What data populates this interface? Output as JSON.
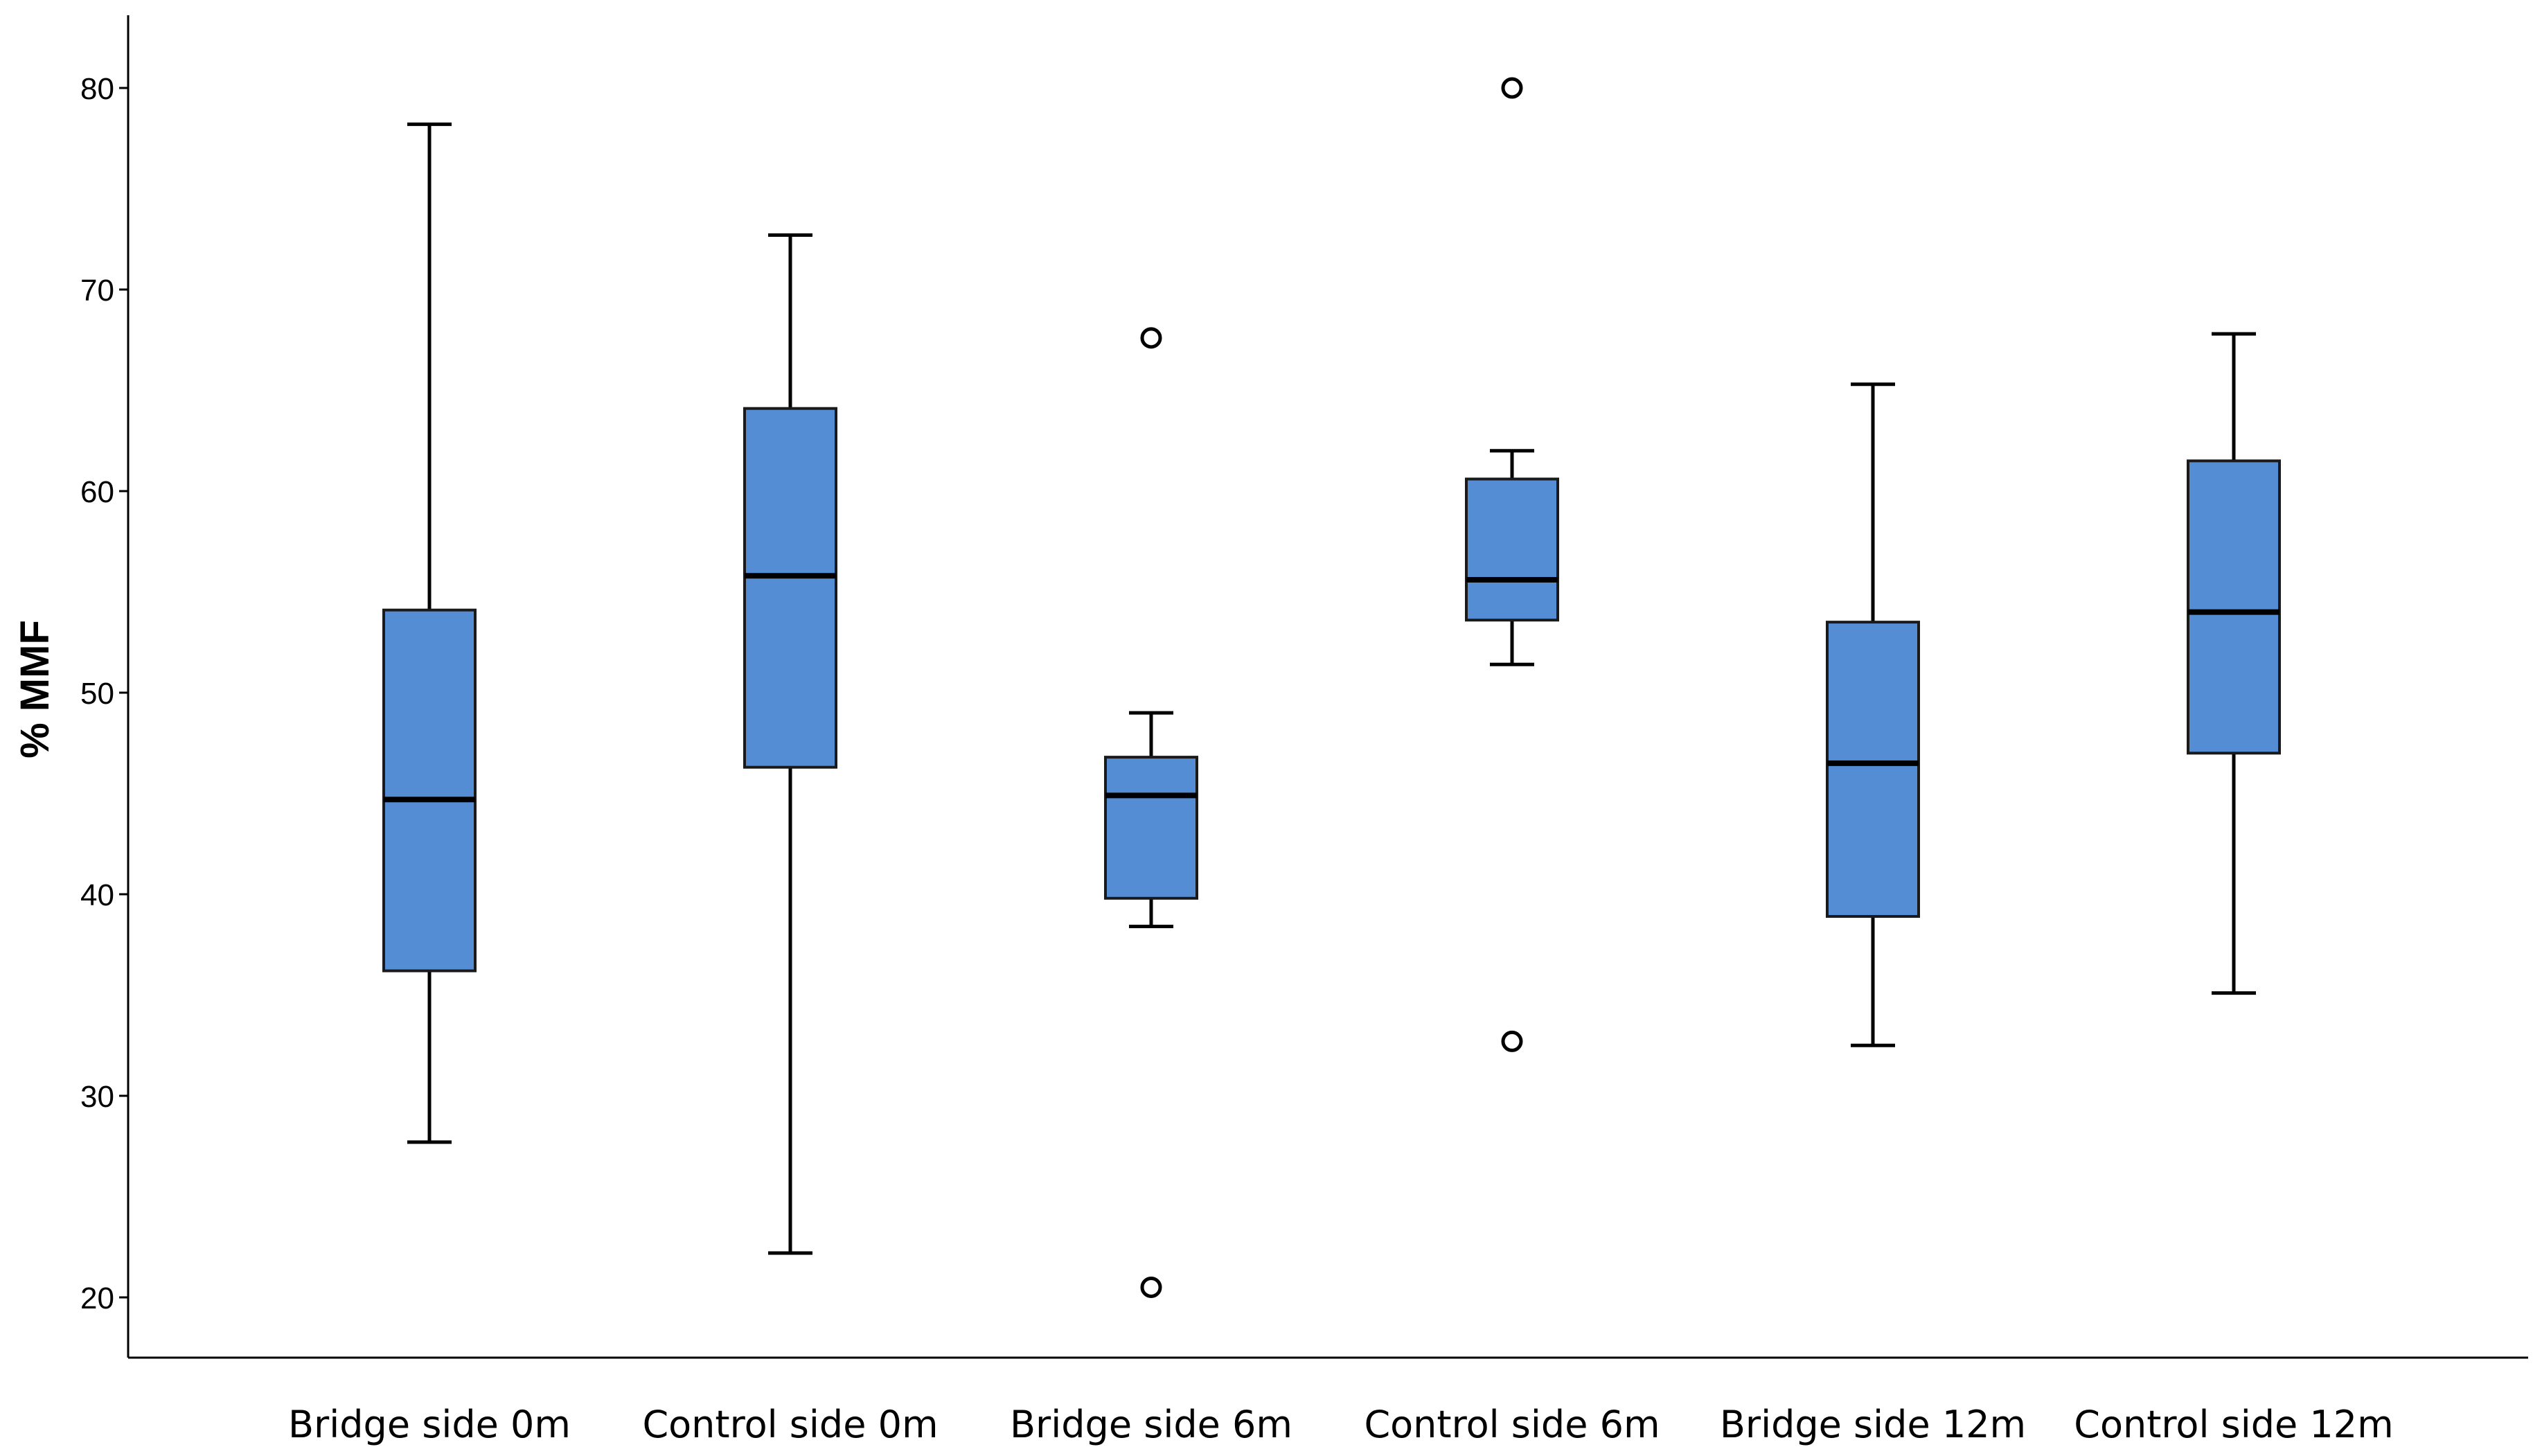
{
  "chart_data": {
    "type": "boxplot",
    "title": "",
    "xlabel": "",
    "ylabel": "% MMF",
    "ylim": [
      18,
      84
    ],
    "yticks": [
      20,
      30,
      40,
      50,
      60,
      70,
      80
    ],
    "grid": false,
    "box_color": "#548DD4",
    "categories": [
      "Bridge side 0m",
      "Control side 0m",
      "Bridge side 6m",
      "Control side 6m",
      "Bridge side 12m",
      "Control side 12m"
    ],
    "series": [
      {
        "name": "Bridge side 0m",
        "whisker_low": 27.7,
        "q1": 36.2,
        "median": 44.7,
        "q3": 54.1,
        "whisker_high": 78.2,
        "outliers": []
      },
      {
        "name": "Control side 0m",
        "whisker_low": 22.2,
        "q1": 46.3,
        "median": 55.8,
        "q3": 64.1,
        "whisker_high": 72.7,
        "outliers": []
      },
      {
        "name": "Bridge side 6m",
        "whisker_low": 38.4,
        "q1": 39.8,
        "median": 44.9,
        "q3": 46.8,
        "whisker_high": 49.0,
        "outliers": [
          67.6,
          20.5
        ]
      },
      {
        "name": "Control side 6m",
        "whisker_low": 51.4,
        "q1": 53.6,
        "median": 55.6,
        "q3": 60.6,
        "whisker_high": 62.0,
        "outliers": [
          80.0,
          32.7
        ]
      },
      {
        "name": "Bridge side 12m",
        "whisker_low": 32.5,
        "q1": 38.9,
        "median": 46.5,
        "q3": 53.5,
        "whisker_high": 65.3,
        "outliers": []
      },
      {
        "name": "Control side 12m",
        "whisker_low": 35.1,
        "q1": 47.0,
        "median": 54.0,
        "q3": 61.5,
        "whisker_high": 67.8,
        "outliers": []
      }
    ]
  }
}
